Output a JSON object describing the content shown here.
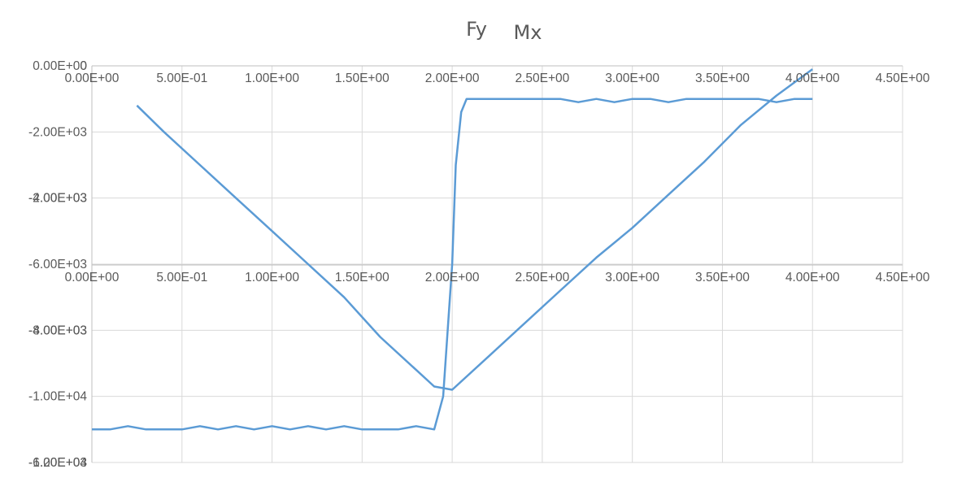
{
  "chart_data": [
    {
      "type": "line",
      "title": "Fy",
      "x_axis": {
        "range": [
          0,
          4.5
        ],
        "tick_values": [
          0,
          0.5,
          1,
          1.5,
          2,
          2.5,
          3,
          3.5,
          4,
          4.5
        ],
        "tick_labels": [
          "0.00E+00",
          "5.00E-01",
          "1.00E+00",
          "1.50E+00",
          "2.00E+00",
          "2.50E+00",
          "3.00E+00",
          "3.50E+00",
          "4.00E+00",
          "4.50E+00"
        ]
      },
      "y_axis": {
        "range": [
          -6000,
          0
        ],
        "tick_values": [
          0,
          -2000,
          -4000,
          -6000
        ],
        "tick_labels": [
          "0.00E+00",
          "-2.00E+03",
          "-4.00E+03",
          "-6.00E+03"
        ]
      },
      "grid": true,
      "color": "#5b9bd5",
      "series": [
        {
          "x": [
            0,
            0.1,
            0.2,
            0.3,
            0.4,
            0.5,
            0.6,
            0.7,
            0.8,
            0.9,
            1.0,
            1.1,
            1.2,
            1.3,
            1.4,
            1.5,
            1.6,
            1.7,
            1.8,
            1.9,
            1.95,
            2.0,
            2.02,
            2.05,
            2.08,
            2.1,
            2.2,
            2.3,
            2.4,
            2.5,
            2.6,
            2.7,
            2.8,
            2.9,
            3.0,
            3.1,
            3.2,
            3.3,
            3.4,
            3.5,
            3.6,
            3.7,
            3.8,
            3.9,
            4.0
          ],
          "y": [
            -5500,
            -5500,
            -5450,
            -5500,
            -5500,
            -5500,
            -5450,
            -5500,
            -5450,
            -5500,
            -5450,
            -5500,
            -5450,
            -5500,
            -5450,
            -5500,
            -5500,
            -5500,
            -5450,
            -5500,
            -5000,
            -3000,
            -1500,
            -700,
            -500,
            -500,
            -500,
            -500,
            -500,
            -500,
            -500,
            -550,
            -500,
            -550,
            -500,
            -500,
            -550,
            -500,
            -500,
            -500,
            -500,
            -500,
            -550,
            -500,
            -500
          ]
        }
      ]
    },
    {
      "type": "line",
      "title": "Mx",
      "x_axis": {
        "range": [
          0,
          4.5
        ],
        "tick_values": [
          0,
          0.5,
          1,
          1.5,
          2,
          2.5,
          3,
          3.5,
          4,
          4.5
        ],
        "tick_labels": [
          "0.00E+00",
          "5.00E-01",
          "1.00E+00",
          "1.50E+00",
          "2.00E+00",
          "2.50E+00",
          "3.00E+00",
          "3.50E+00",
          "4.00E+00",
          "4.50E+00"
        ]
      },
      "y_axis": {
        "range": [
          -12000,
          0
        ],
        "tick_values": [
          0,
          -2000,
          -4000,
          -6000,
          -8000,
          -10000,
          -12000
        ],
        "tick_labels": [
          "0",
          "-2.00E+03",
          "-4.00E+03",
          "-6.00E+03",
          "-8.00E+03",
          "-1.00E+04",
          "-1.20E+04"
        ]
      },
      "grid": true,
      "color": "#5b9bd5",
      "series": [
        {
          "x": [
            0.25,
            0.4,
            0.6,
            0.8,
            1.0,
            1.2,
            1.4,
            1.6,
            1.8,
            1.9,
            2.0,
            2.2,
            2.4,
            2.6,
            2.8,
            3.0,
            3.2,
            3.4,
            3.6,
            3.8,
            4.0
          ],
          "y": [
            -1200,
            -2000,
            -3000,
            -4000,
            -5000,
            -6000,
            -7000,
            -8200,
            -9200,
            -9700,
            -9800,
            -8800,
            -7800,
            -6800,
            -5800,
            -4900,
            -3900,
            -2900,
            -1800,
            -900,
            -100
          ]
        }
      ]
    }
  ]
}
